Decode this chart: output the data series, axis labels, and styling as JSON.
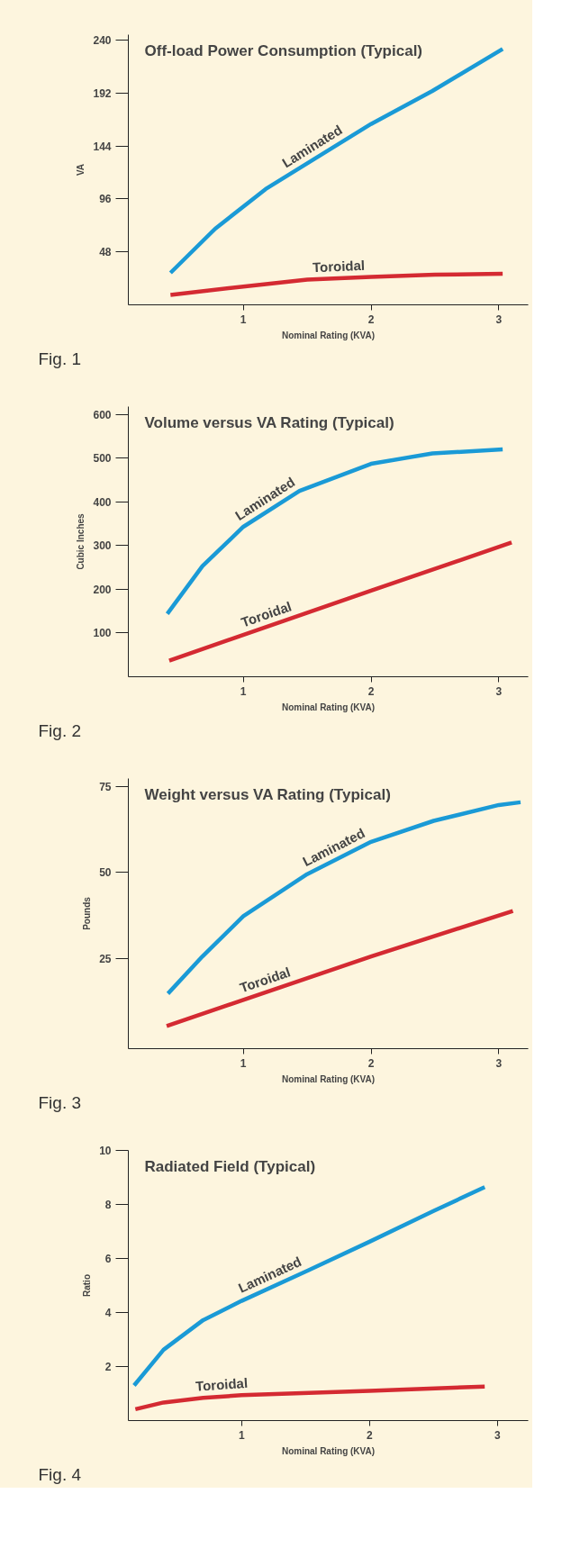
{
  "chart_data": [
    {
      "type": "line",
      "title": "Off-load Power Consumption (Typical)",
      "xlabel": "Nominal Rating (KVA)",
      "ylabel": "VA",
      "xlim": [
        0.1,
        3.23
      ],
      "ylim": [
        0,
        245
      ],
      "xticks": [
        1,
        2,
        3
      ],
      "yticks": [
        48,
        96,
        144,
        192,
        240
      ],
      "annotations": [
        "Fig. 1"
      ],
      "series": [
        {
          "name": "Laminated",
          "color": "#1a9ad6",
          "x": [
            0.43,
            0.78,
            1.175,
            2.0,
            2.48,
            3.03
          ],
          "values": [
            29,
            69,
            105,
            164,
            194,
            232
          ]
        },
        {
          "name": "Toroidal",
          "color": "#d42a32",
          "x": [
            0.43,
            1.0,
            1.5,
            2.0,
            2.5,
            3.03
          ],
          "values": [
            9,
            16.6,
            22.8,
            25.3,
            27.3,
            28.1
          ]
        }
      ]
    },
    {
      "type": "line",
      "title": "Volume versus VA Rating (Typical)",
      "xlabel": "Nominal Rating (KVA)",
      "ylabel": "Cubic Inches",
      "xlim": [
        0.1,
        3.23
      ],
      "ylim": [
        0,
        618
      ],
      "xticks": [
        1,
        2,
        3
      ],
      "yticks": [
        100,
        200,
        300,
        400,
        500,
        600
      ],
      "annotations": [
        "Fig. 2"
      ],
      "series": [
        {
          "name": "Laminated",
          "color": "#1a9ad6",
          "x": [
            0.405,
            0.68,
            1.0,
            1.44,
            2.0,
            2.48,
            3.03
          ],
          "values": [
            144,
            253,
            343,
            425,
            487,
            511,
            520
          ]
        },
        {
          "name": "Toroidal",
          "color": "#d42a32",
          "x": [
            0.42,
            2.0,
            3.1
          ],
          "values": [
            37,
            197,
            307
          ]
        }
      ]
    },
    {
      "type": "line",
      "title": "Weight versus VA Rating (Typical)",
      "xlabel": "Nominal Rating (KVA)",
      "ylabel": "Pounds",
      "xlim": [
        0.1,
        3.23
      ],
      "ylim": [
        -1.2,
        77.3
      ],
      "xticks": [
        1,
        2,
        3
      ],
      "yticks": [
        25,
        50,
        75
      ],
      "annotations": [
        "Fig. 3"
      ],
      "series": [
        {
          "name": "Laminated",
          "color": "#1a9ad6",
          "x": [
            0.41,
            0.68,
            1.0,
            1.5,
            2.0,
            2.49,
            3.0,
            3.17
          ],
          "values": [
            14.8,
            25.6,
            37.3,
            49.5,
            58.9,
            65,
            69.6,
            70.4
          ]
        },
        {
          "name": "Toroidal",
          "color": "#d42a32",
          "x": [
            0.4,
            2.0,
            3.11
          ],
          "values": [
            5.4,
            25.6,
            38.8
          ]
        }
      ]
    },
    {
      "type": "line",
      "title": "Radiated Field (Typical)",
      "xlabel": "Nominal Rating (KVA)",
      "ylabel": "Ratio",
      "xlim": [
        0.115,
        3.24
      ],
      "ylim": [
        0,
        10
      ],
      "xticks": [
        1,
        2,
        3
      ],
      "yticks": [
        2,
        4,
        6,
        8,
        10
      ],
      "annotations": [
        "Fig. 4"
      ],
      "series": [
        {
          "name": "Laminated",
          "color": "#1a9ad6",
          "x": [
            0.16,
            0.39,
            0.7,
            1.0,
            1.52,
            2.0,
            2.5,
            2.9
          ],
          "values": [
            1.3,
            2.62,
            3.72,
            4.43,
            5.56,
            6.62,
            7.76,
            8.64
          ]
        },
        {
          "name": "Toroidal",
          "color": "#d42a32",
          "x": [
            0.17,
            0.39,
            0.7,
            1.0,
            2.0,
            2.9
          ],
          "values": [
            0.42,
            0.67,
            0.84,
            0.94,
            1.1,
            1.26
          ]
        }
      ]
    }
  ]
}
